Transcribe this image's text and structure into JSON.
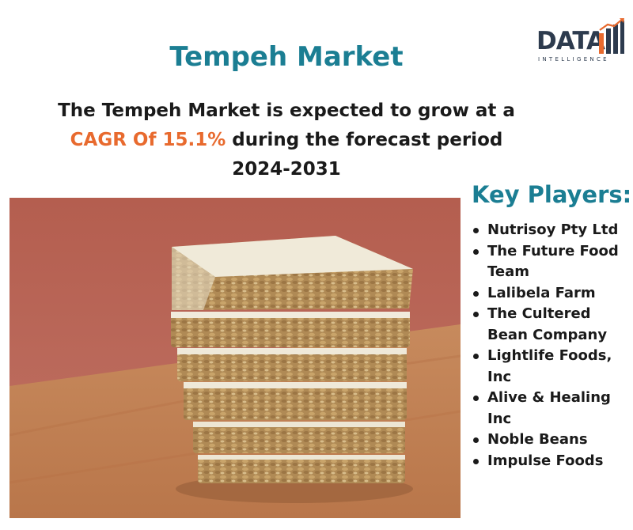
{
  "header": {
    "title": "Tempeh Market",
    "headline_part1": "The Tempeh Market is expected to grow at a",
    "headline_cagr": "CAGR Of 15.1%",
    "headline_part2": "during the forecast period",
    "headline_part3": "2024-2031"
  },
  "logo": {
    "wordmark": "DATA",
    "subtitle": "INTELLIGENCE"
  },
  "key_players": {
    "title": "Key Players:",
    "items": [
      "Nutrisoy Pty Ltd",
      "The Future Food Team",
      "Lalibela Farm",
      "The Cultered Bean Company",
      "Lightlife Foods, Inc",
      "Alive & Healing Inc",
      "Noble Beans",
      "Impulse Foods"
    ]
  },
  "colors": {
    "title_teal": "#1b7e93",
    "accent_orange": "#e86a2e",
    "text_dark": "#1a1a1a",
    "logo_navy": "#2d3b4e"
  },
  "image": {
    "subject": "stack-of-tempeh-blocks-photo"
  }
}
